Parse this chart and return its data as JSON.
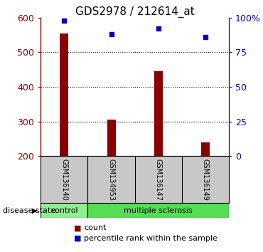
{
  "title": "GDS2978 / 212614_at",
  "samples": [
    "GSM136140",
    "GSM134953",
    "GSM136147",
    "GSM136149"
  ],
  "counts": [
    555,
    305,
    445,
    240
  ],
  "percentiles": [
    98,
    88,
    92,
    86
  ],
  "ymin": 200,
  "ymax": 600,
  "yticks_left": [
    200,
    300,
    400,
    500,
    600
  ],
  "yticks_right": [
    0,
    25,
    50,
    75,
    100
  ],
  "bar_color": "#8B0000",
  "dot_color": "#0000CD",
  "control_color": "#90EE90",
  "ms_color": "#55DD55",
  "sample_bg_color": "#C8C8C8",
  "disease_state_label": "disease state",
  "legend_count": "count",
  "legend_percentile": "percentile rank within the sample",
  "title_fontsize": 11,
  "tick_fontsize": 9,
  "sample_fontsize": 7,
  "legend_fontsize": 8,
  "disease_fontsize": 8
}
